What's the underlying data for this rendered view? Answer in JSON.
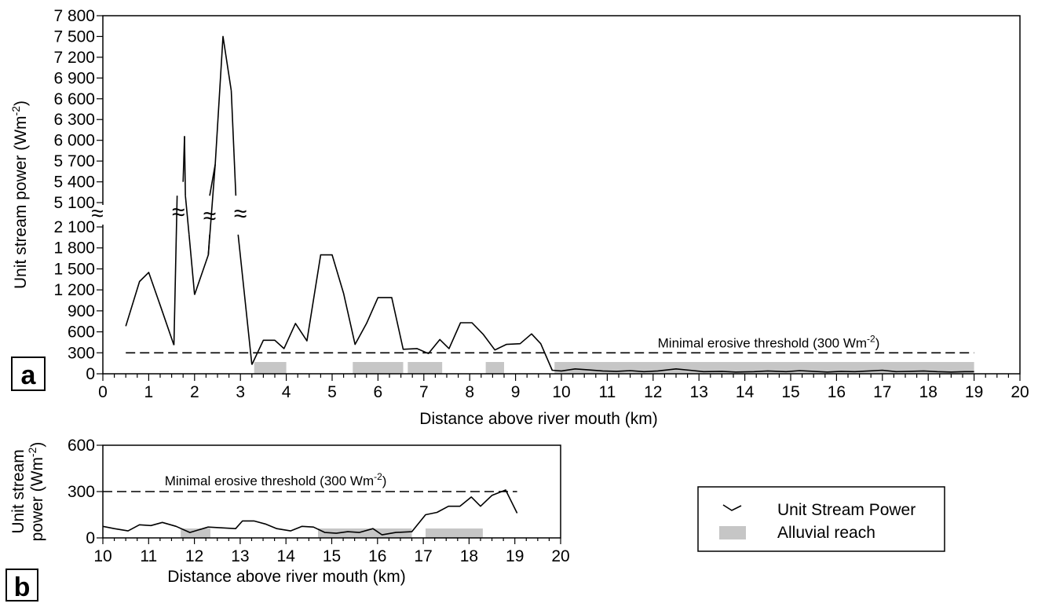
{
  "chart_data": [
    {
      "panel": "a",
      "type": "line",
      "xlabel": "Distance above river mouth (km)",
      "ylabel_main": "Unit stream power (Wm",
      "ylabel_sup": "-2",
      "ylabel_close": ")",
      "xlim": [
        0,
        20
      ],
      "x_ticks": [
        "0",
        "1",
        "2",
        "3",
        "4",
        "5",
        "6",
        "7",
        "8",
        "9",
        "10",
        "11",
        "12",
        "13",
        "14",
        "15",
        "16",
        "17",
        "18",
        "19",
        "20"
      ],
      "axis_break": {
        "lower_range": [
          0,
          2100
        ],
        "upper_range": [
          5100,
          7800
        ],
        "symbol": "≈"
      },
      "y_ticks_lower": [
        "0",
        "300",
        "600",
        "900",
        "1 200",
        "1 500",
        "1 800",
        "2 100"
      ],
      "y_ticks_upper": [
        "5 100",
        "5 400",
        "5 700",
        "6 000",
        "6 300",
        "6 600",
        "6 900",
        "7 200",
        "7 500",
        "7 800"
      ],
      "threshold": {
        "value": 300,
        "label_main": "Minimal erosive threshold (300 Wm",
        "label_sup": "-2",
        "label_close": ")"
      },
      "series": [
        {
          "x": [
            0.5,
            0.8,
            1.0,
            1.25,
            1.55
          ],
          "y": [
            680,
            1320,
            1450,
            980,
            410
          ]
        },
        {
          "x": [
            1.75,
            1.78
          ],
          "y": [
            5400,
            6060
          ]
        },
        {
          "x": [
            2.0,
            2.3,
            2.45,
            2.62,
            2.8
          ],
          "y": [
            1130,
            1700,
            5650,
            7500,
            6720
          ]
        },
        {
          "x": [
            3.25,
            3.5,
            3.75,
            3.95,
            4.2,
            4.45,
            4.75,
            5.0,
            5.25,
            5.5,
            5.75,
            6.0,
            6.3,
            6.55,
            6.85,
            7.1,
            7.35,
            7.55,
            7.8,
            8.05,
            8.3,
            8.55,
            8.8,
            9.1,
            9.35,
            9.55,
            9.8,
            10.0,
            10.3,
            10.6,
            10.9,
            11.2,
            11.5,
            11.8,
            12.1,
            12.5,
            12.8,
            13.1,
            13.5,
            13.8,
            14.2,
            14.5,
            14.9,
            15.2,
            15.5,
            15.8,
            16.1,
            16.4,
            16.7,
            17.0,
            17.3,
            17.6,
            17.9,
            18.2,
            18.5,
            18.8,
            19.0
          ],
          "y": [
            130,
            480,
            480,
            360,
            720,
            470,
            1700,
            1700,
            1150,
            420,
            720,
            1090,
            1090,
            350,
            360,
            290,
            490,
            360,
            730,
            730,
            560,
            340,
            420,
            430,
            570,
            430,
            50,
            40,
            70,
            55,
            40,
            35,
            45,
            30,
            40,
            70,
            50,
            30,
            35,
            25,
            30,
            40,
            30,
            45,
            35,
            25,
            35,
            30,
            40,
            50,
            30,
            35,
            40,
            30,
            25,
            30,
            30
          ]
        }
      ],
      "alluvial_reaches": [
        [
          3.3,
          4.0
        ],
        [
          5.45,
          6.55
        ],
        [
          6.65,
          7.4
        ],
        [
          8.35,
          8.75
        ],
        [
          9.85,
          19.0
        ]
      ],
      "panel_label": "a"
    },
    {
      "panel": "b",
      "type": "line",
      "xlabel": "Distance above river mouth (km)",
      "ylabel_line1": "Unit stream",
      "ylabel_line2_main": "power (Wm",
      "ylabel_sup": "-2",
      "ylabel_close": ")",
      "xlim": [
        10,
        20
      ],
      "ylim": [
        0,
        600
      ],
      "x_ticks": [
        "10",
        "11",
        "12",
        "13",
        "14",
        "15",
        "16",
        "17",
        "18",
        "19",
        "20"
      ],
      "y_ticks": [
        "0",
        "300",
        "600"
      ],
      "threshold": {
        "value": 300,
        "label_main": "Minimal erosive threshold (300 Wm",
        "label_sup": "-2",
        "label_close": ")"
      },
      "series": [
        {
          "x": [
            10.0,
            10.25,
            10.55,
            10.8,
            11.05,
            11.3,
            11.6,
            11.9,
            12.3,
            12.9,
            13.05,
            13.3,
            13.55,
            13.8,
            14.1,
            14.35,
            14.6,
            14.85,
            15.1,
            15.35,
            15.6,
            15.9,
            16.1,
            16.4,
            16.75,
            17.05,
            17.3,
            17.55,
            17.8,
            18.05,
            18.25,
            18.5,
            18.8,
            19.05
          ],
          "y": [
            75,
            60,
            45,
            85,
            80,
            100,
            75,
            35,
            70,
            60,
            110,
            110,
            90,
            60,
            45,
            75,
            70,
            35,
            30,
            40,
            35,
            60,
            20,
            35,
            40,
            150,
            165,
            205,
            205,
            265,
            205,
            275,
            310,
            160
          ]
        }
      ],
      "alluvial_reaches": [
        [
          11.7,
          12.35
        ],
        [
          14.7,
          16.75
        ],
        [
          17.05,
          18.3
        ]
      ],
      "panel_label": "b"
    }
  ],
  "legend": {
    "line_label": "Unit Stream Power",
    "bar_label": "Alluvial reach"
  },
  "colors": {
    "line": "#000000",
    "alluvial": "#c6c6c6",
    "background": "#ffffff"
  }
}
